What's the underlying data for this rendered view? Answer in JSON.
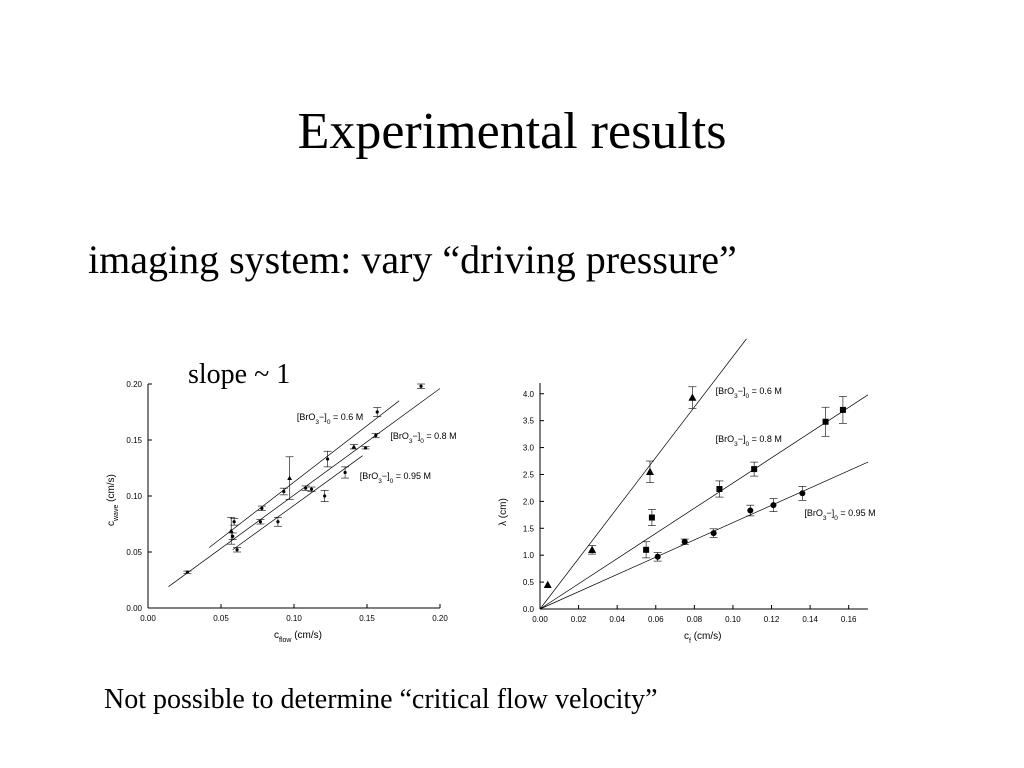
{
  "slide": {
    "title": "Experimental results",
    "subtitle": "imaging system: vary “driving pressure”",
    "slope_note": "slope ~ 1",
    "footer": "Not possible to determine “critical flow velocity”"
  },
  "chart_data": [
    {
      "type": "scatter",
      "title": "",
      "xlabel": "c",
      "xlabel_sub": "flow",
      "xlabel_unit": "(cm/s)",
      "ylabel": "c",
      "ylabel_sub": "wave",
      "ylabel_unit": "(cm/s)",
      "xlim": [
        0.0,
        0.2
      ],
      "ylim": [
        0.0,
        0.2
      ],
      "x_ticks": [
        "0.00",
        "0.05",
        "0.10",
        "0.15",
        "0.20"
      ],
      "y_ticks": [
        "0.00",
        "0.05",
        "0.10",
        "0.15",
        "0.20"
      ],
      "x_tick_values": [
        0,
        0.05,
        0.1,
        0.15,
        0.2
      ],
      "y_tick_values": [
        0,
        0.05,
        0.1,
        0.15,
        0.2
      ],
      "grid": false,
      "series": [
        {
          "name": "[BrO3−]0 = 0.6 M",
          "label_main": "[BrO",
          "label_sub1": "3",
          "label_mid": "−]",
          "label_sub2": "0",
          "label_end": " = 0.6 M",
          "marker": "dot",
          "points": [
            {
              "x": 0.027,
              "y": 0.032,
              "err": 0.001
            },
            {
              "x": 0.058,
              "y": 0.064,
              "err": 0.003
            },
            {
              "x": 0.078,
              "y": 0.089,
              "err": 0.002
            },
            {
              "x": 0.093,
              "y": 0.104,
              "err": 0.003
            },
            {
              "x": 0.123,
              "y": 0.133,
              "err": 0.007
            },
            {
              "x": 0.157,
              "y": 0.175,
              "err": 0.004
            },
            {
              "x": 0.187,
              "y": 0.198,
              "err": 0.002
            }
          ],
          "fit": [
            [
              0.014,
              0.019
            ],
            [
              0.2,
              0.196
            ]
          ]
        },
        {
          "name": "[BrO3−]0 = 0.8 M",
          "label_main": "[BrO",
          "label_sub1": "3",
          "label_mid": "−]",
          "label_sub2": "0",
          "label_end": " = 0.8 M",
          "marker": "triangle",
          "points": [
            {
              "x": 0.057,
              "y": 0.069,
              "err": 0.012
            },
            {
              "x": 0.097,
              "y": 0.116,
              "err": 0.019
            },
            {
              "x": 0.141,
              "y": 0.144,
              "err": 0.002
            }
          ],
          "fit": [
            [
              0.042,
              0.054
            ],
            [
              0.172,
              0.185
            ]
          ]
        },
        {
          "name": "[BrO3−]0 = 0.95 M",
          "label_main": "[BrO",
          "label_sub1": "3",
          "label_mid": "−]",
          "label_sub2": "0",
          "label_end": " = 0.95 M",
          "marker": "dot",
          "points": [
            {
              "x": 0.059,
              "y": 0.077,
              "err": 0.003
            },
            {
              "x": 0.061,
              "y": 0.052,
              "err": 0.002
            },
            {
              "x": 0.077,
              "y": 0.077,
              "err": 0.002
            },
            {
              "x": 0.089,
              "y": 0.077,
              "err": 0.004
            },
            {
              "x": 0.108,
              "y": 0.107,
              "err": 0.002
            },
            {
              "x": 0.112,
              "y": 0.106,
              "err": 0.002
            },
            {
              "x": 0.121,
              "y": 0.1,
              "err": 0.005
            },
            {
              "x": 0.135,
              "y": 0.121,
              "err": 0.005
            },
            {
              "x": 0.149,
              "y": 0.143,
              "err": 0.001
            },
            {
              "x": 0.156,
              "y": 0.154,
              "err": 0.002
            }
          ],
          "fit": [
            [
              0.058,
              0.052
            ],
            [
              0.147,
              0.136
            ]
          ]
        }
      ],
      "legend": [
        {
          "series": 0,
          "anchor": [
            0.102,
            0.168
          ]
        },
        {
          "series": 1,
          "anchor": [
            0.166,
            0.151
          ]
        },
        {
          "series": 2,
          "anchor": [
            0.145,
            0.115
          ]
        }
      ]
    },
    {
      "type": "scatter",
      "title": "",
      "xlabel": "c",
      "xlabel_sub": "f",
      "xlabel_unit": "(cm/s)",
      "ylabel": "λ (cm)",
      "xlim": [
        0.0,
        0.17
      ],
      "ylim": [
        0.0,
        4.2
      ],
      "x_ticks": [
        "0.00",
        "0.02",
        "0.04",
        "0.06",
        "0.08",
        "0.10",
        "0.12",
        "0.14",
        "0.16"
      ],
      "y_ticks": [
        "0.0",
        "0.5",
        "1.0",
        "1.5",
        "2.0",
        "2.5",
        "3.0",
        "3.5",
        "4.0"
      ],
      "x_tick_values": [
        0,
        0.02,
        0.04,
        0.06,
        0.08,
        0.1,
        0.12,
        0.14,
        0.16
      ],
      "y_tick_values": [
        0,
        0.5,
        1.0,
        1.5,
        2.0,
        2.5,
        3.0,
        3.5,
        4.0
      ],
      "grid": false,
      "series": [
        {
          "name": "[BrO3−]0 = 0.6 M",
          "label_main": "[BrO",
          "label_sub1": "3",
          "label_mid": "−]",
          "label_sub2": "0",
          "label_end": " = 0.6 M",
          "marker": "triangle",
          "points": [
            {
              "x": 0.004,
              "y": 0.45,
              "err": 0.0
            },
            {
              "x": 0.027,
              "y": 1.1,
              "err": 0.08
            },
            {
              "x": 0.057,
              "y": 2.55,
              "err": 0.2
            },
            {
              "x": 0.079,
              "y": 3.93,
              "err": 0.2
            }
          ],
          "fit": [
            [
              0.0,
              0.0
            ],
            [
              0.107,
              5.02
            ]
          ]
        },
        {
          "name": "[BrO3−]0 = 0.8 M",
          "label_main": "[BrO",
          "label_sub1": "3",
          "label_mid": "−]",
          "label_sub2": "0",
          "label_end": " = 0.8 M",
          "marker": "square",
          "points": [
            {
              "x": 0.055,
              "y": 1.1,
              "err": 0.15
            },
            {
              "x": 0.058,
              "y": 1.7,
              "err": 0.15
            },
            {
              "x": 0.093,
              "y": 2.23,
              "err": 0.15
            },
            {
              "x": 0.111,
              "y": 2.6,
              "err": 0.13
            },
            {
              "x": 0.148,
              "y": 3.48,
              "err": 0.27
            },
            {
              "x": 0.157,
              "y": 3.7,
              "err": 0.25
            }
          ],
          "fit": [
            [
              0.0,
              0.0
            ],
            [
              0.17,
              3.98
            ]
          ]
        },
        {
          "name": "[BrO3−]0 = 0.95 M",
          "label_main": "[BrO",
          "label_sub1": "3",
          "label_mid": "−]",
          "label_sub2": "0",
          "label_end": " = 0.95 M",
          "marker": "circle",
          "points": [
            {
              "x": 0.061,
              "y": 0.97,
              "err": 0.08
            },
            {
              "x": 0.075,
              "y": 1.25,
              "err": 0.05
            },
            {
              "x": 0.09,
              "y": 1.41,
              "err": 0.08
            },
            {
              "x": 0.109,
              "y": 1.83,
              "err": 0.1
            },
            {
              "x": 0.121,
              "y": 1.93,
              "err": 0.12
            },
            {
              "x": 0.136,
              "y": 2.15,
              "err": 0.13
            }
          ],
          "fit": [
            [
              0.0,
              0.0
            ],
            [
              0.17,
              2.73
            ]
          ]
        }
      ],
      "legend": [
        {
          "series": 0,
          "anchor": [
            0.091,
            4.0
          ]
        },
        {
          "series": 1,
          "anchor": [
            0.091,
            3.1
          ]
        },
        {
          "series": 2,
          "anchor": [
            0.137,
            1.73
          ]
        }
      ]
    }
  ]
}
